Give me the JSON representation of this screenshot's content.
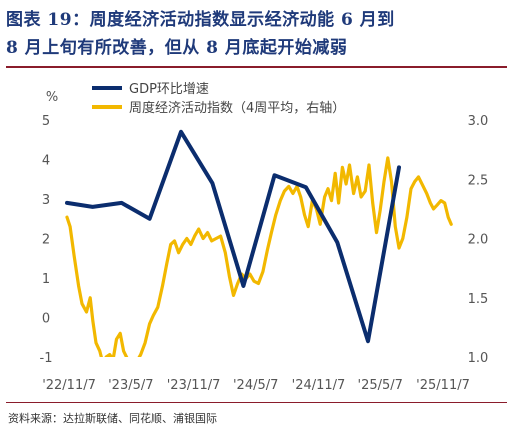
{
  "title": {
    "line1": "图表 19：周度经济活动指数显示经济动能 6 月到",
    "line2": "8 月上旬有所改善，但从 8 月底起开始减弱"
  },
  "source": "资料来源：达拉斯联储、同花顺、浦银国际",
  "colors": {
    "title": "#1f3a7a",
    "rule": "#8a1c2b",
    "gdp": "#0b2d6e",
    "wei": "#f2b800"
  },
  "chart_data": {
    "type": "line",
    "ylabel_left": "%",
    "ylim_left": [
      -1,
      5
    ],
    "yticks_left": [
      "5",
      "4",
      "3",
      "2",
      "1",
      "0",
      "-1"
    ],
    "ylim_right": [
      1.0,
      3.0
    ],
    "yticks_right": [
      "3.0",
      "2.5",
      "2.0",
      "1.5",
      "1.0"
    ],
    "xlim": [
      "2022-11-01",
      "2025-12-15"
    ],
    "xticks": [
      {
        "date": "2022-11-07",
        "label": "'22/11/7"
      },
      {
        "date": "2023-05-07",
        "label": "'23/5/7"
      },
      {
        "date": "2023-11-07",
        "label": "'23/11/7"
      },
      {
        "date": "2024-05-07",
        "label": "'24/5/7"
      },
      {
        "date": "2024-11-07",
        "label": "'24/11/7"
      },
      {
        "date": "2025-05-07",
        "label": "'25/5/7"
      },
      {
        "date": "2025-11-07",
        "label": "'25/11/7"
      }
    ],
    "series": [
      {
        "name": "GDP环比增速",
        "axis": "left",
        "color": "#0b2d6e",
        "points": [
          [
            "2022-11-01",
            2.9
          ],
          [
            "2023-01-15",
            2.8
          ],
          [
            "2023-04-10",
            2.9
          ],
          [
            "2023-07-01",
            2.5
          ],
          [
            "2023-10-01",
            4.7
          ],
          [
            "2024-01-01",
            3.4
          ],
          [
            "2024-04-01",
            0.8
          ],
          [
            "2024-07-01",
            3.6
          ],
          [
            "2024-10-01",
            3.3
          ],
          [
            "2025-01-01",
            1.9
          ],
          [
            "2025-04-01",
            -0.6
          ],
          [
            "2025-07-01",
            3.8
          ]
        ]
      },
      {
        "name": "周度经济活动指数（4周平均，右轴）",
        "axis": "right",
        "color": "#f2b800",
        "points": [
          [
            "2022-11-01",
            2.18
          ],
          [
            "2022-11-10",
            2.1
          ],
          [
            "2022-11-22",
            1.85
          ],
          [
            "2022-12-05",
            1.6
          ],
          [
            "2022-12-15",
            1.45
          ],
          [
            "2022-12-28",
            1.38
          ],
          [
            "2023-01-08",
            1.5
          ],
          [
            "2023-01-16",
            1.3
          ],
          [
            "2023-01-25",
            1.12
          ],
          [
            "2023-02-05",
            1.05
          ],
          [
            "2023-02-14",
            0.95
          ],
          [
            "2023-02-24",
            1.0
          ],
          [
            "2023-03-06",
            1.02
          ],
          [
            "2023-03-16",
            0.98
          ],
          [
            "2023-03-26",
            1.15
          ],
          [
            "2023-04-06",
            1.2
          ],
          [
            "2023-04-16",
            1.05
          ],
          [
            "2023-04-28",
            0.98
          ],
          [
            "2023-05-10",
            0.92
          ],
          [
            "2023-05-22",
            0.95
          ],
          [
            "2023-06-05",
            1.02
          ],
          [
            "2023-06-18",
            1.12
          ],
          [
            "2023-07-01",
            1.28
          ],
          [
            "2023-07-12",
            1.35
          ],
          [
            "2023-07-25",
            1.42
          ],
          [
            "2023-08-08",
            1.6
          ],
          [
            "2023-08-20",
            1.78
          ],
          [
            "2023-09-01",
            1.95
          ],
          [
            "2023-09-12",
            1.98
          ],
          [
            "2023-09-24",
            1.88
          ],
          [
            "2023-10-06",
            1.95
          ],
          [
            "2023-10-18",
            2.0
          ],
          [
            "2023-10-30",
            1.95
          ],
          [
            "2023-11-10",
            2.02
          ],
          [
            "2023-11-22",
            2.08
          ],
          [
            "2023-12-05",
            2.0
          ],
          [
            "2023-12-18",
            2.05
          ],
          [
            "2023-12-30",
            1.98
          ],
          [
            "2024-01-12",
            2.0
          ],
          [
            "2024-01-25",
            2.02
          ],
          [
            "2024-02-08",
            1.88
          ],
          [
            "2024-02-20",
            1.68
          ],
          [
            "2024-03-03",
            1.52
          ],
          [
            "2024-03-15",
            1.62
          ],
          [
            "2024-03-27",
            1.7
          ],
          [
            "2024-04-08",
            1.66
          ],
          [
            "2024-04-20",
            1.7
          ],
          [
            "2024-05-02",
            1.64
          ],
          [
            "2024-05-15",
            1.62
          ],
          [
            "2024-05-28",
            1.72
          ],
          [
            "2024-06-10",
            1.9
          ],
          [
            "2024-06-22",
            2.05
          ],
          [
            "2024-07-05",
            2.2
          ],
          [
            "2024-07-18",
            2.32
          ],
          [
            "2024-07-30",
            2.4
          ],
          [
            "2024-08-12",
            2.44
          ],
          [
            "2024-08-24",
            2.38
          ],
          [
            "2024-09-05",
            2.44
          ],
          [
            "2024-09-16",
            2.35
          ],
          [
            "2024-09-27",
            2.2
          ],
          [
            "2024-10-08",
            2.1
          ],
          [
            "2024-10-20",
            2.32
          ],
          [
            "2024-11-01",
            2.25
          ],
          [
            "2024-11-12",
            2.12
          ],
          [
            "2024-11-25",
            2.35
          ],
          [
            "2024-12-05",
            2.42
          ],
          [
            "2024-12-15",
            2.32
          ],
          [
            "2024-12-26",
            2.55
          ],
          [
            "2025-01-05",
            2.3
          ],
          [
            "2025-01-16",
            2.6
          ],
          [
            "2025-01-27",
            2.46
          ],
          [
            "2025-02-06",
            2.62
          ],
          [
            "2025-02-18",
            2.38
          ],
          [
            "2025-03-01",
            2.52
          ],
          [
            "2025-03-12",
            2.35
          ],
          [
            "2025-03-24",
            2.4
          ],
          [
            "2025-04-04",
            2.62
          ],
          [
            "2025-04-15",
            2.3
          ],
          [
            "2025-04-26",
            2.05
          ],
          [
            "2025-05-07",
            2.24
          ],
          [
            "2025-05-18",
            2.48
          ],
          [
            "2025-05-29",
            2.68
          ],
          [
            "2025-06-09",
            2.48
          ],
          [
            "2025-06-20",
            2.1
          ],
          [
            "2025-07-01",
            1.92
          ],
          [
            "2025-07-12",
            2.0
          ],
          [
            "2025-07-24",
            2.18
          ],
          [
            "2025-08-05",
            2.42
          ],
          [
            "2025-08-16",
            2.48
          ],
          [
            "2025-08-27",
            2.52
          ],
          [
            "2025-09-08",
            2.45
          ],
          [
            "2025-09-20",
            2.38
          ],
          [
            "2025-10-01",
            2.3
          ],
          [
            "2025-10-10",
            2.25
          ],
          [
            "2025-10-20",
            2.28
          ],
          [
            "2025-11-01",
            2.32
          ],
          [
            "2025-11-12",
            2.3
          ],
          [
            "2025-11-22",
            2.18
          ],
          [
            "2025-12-01",
            2.12
          ]
        ]
      }
    ],
    "legend_position": "top",
    "grid": false
  }
}
